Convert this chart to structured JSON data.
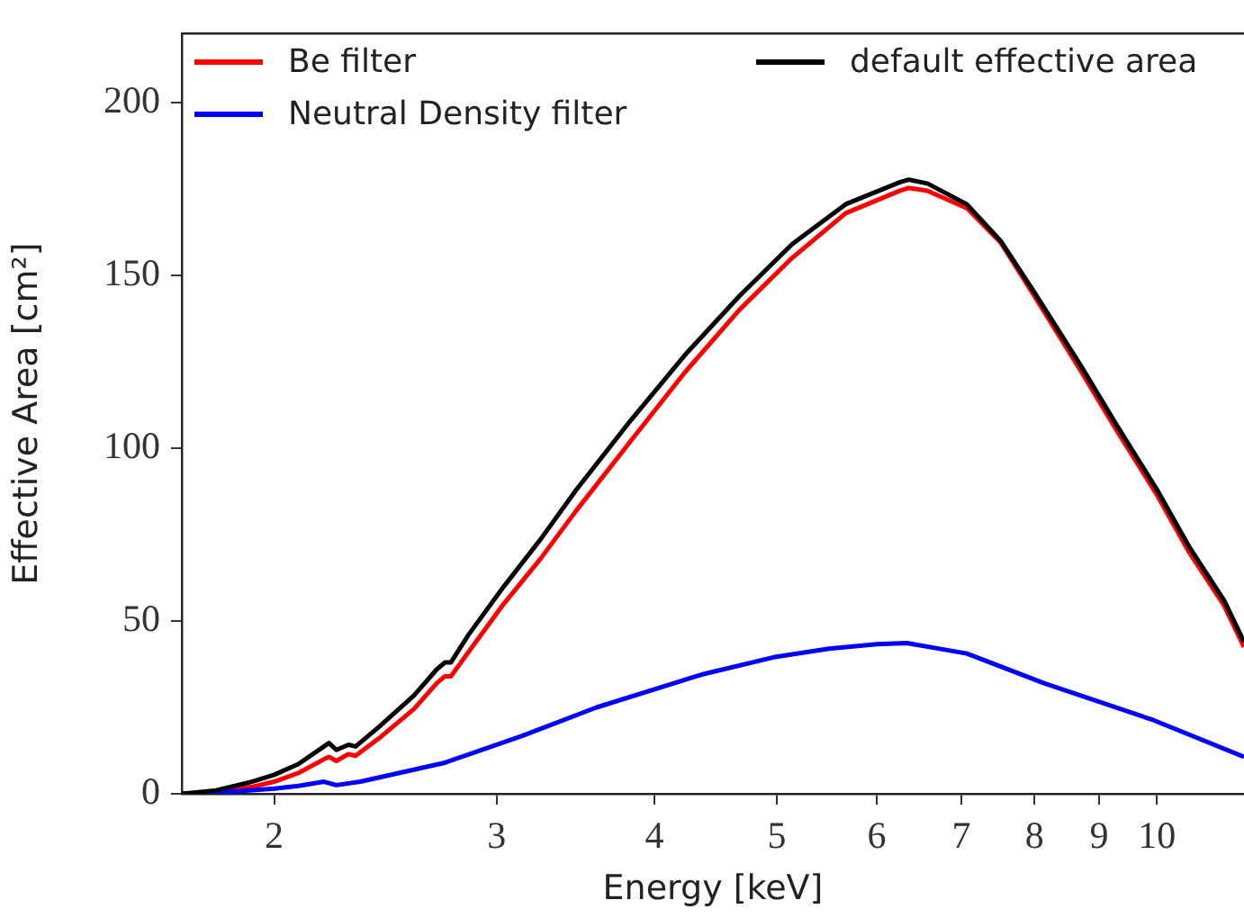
{
  "chart_data": {
    "type": "line",
    "xlabel": "Energy [keV]",
    "ylabel": "Effective Area [cm²]",
    "log": "x",
    "grid": false,
    "legend": "top",
    "marker": "none",
    "line_style": "solid",
    "xlim": [
      1.69,
      11.72
    ],
    "xticks": [
      2,
      3,
      4,
      5,
      6,
      7,
      8,
      9,
      10
    ],
    "ylim": [
      0,
      220
    ],
    "yticks": [
      0,
      50,
      100,
      150,
      200
    ],
    "series": [
      {
        "name": "Be filter",
        "color": "#ff0000",
        "x": [
          1.69,
          1.8,
          1.92,
          2.0,
          2.09,
          2.19,
          2.21,
          2.24,
          2.29,
          2.32,
          2.42,
          2.58,
          2.69,
          2.73,
          2.76,
          2.85,
          3.04,
          3.25,
          3.47,
          3.83,
          4.23,
          4.67,
          5.14,
          5.67,
          6.26,
          6.36,
          6.58,
          7.07,
          7.52,
          8.0,
          8.7,
          9.28,
          10.0,
          10.6,
          11.3,
          11.72
        ],
        "values": [
          0,
          0.5,
          2,
          3.5,
          6,
          10,
          10.7,
          9.5,
          11.5,
          11,
          16,
          24.5,
          32,
          34,
          34,
          41,
          55,
          68,
          82,
          102,
          122,
          140,
          155,
          168,
          174.5,
          175.3,
          174.5,
          169.5,
          159.5,
          144,
          122.5,
          105.5,
          86.5,
          70,
          54.5,
          42.5
        ]
      },
      {
        "name": "Neutral Density filter",
        "color": "#0000ff",
        "x": [
          1.69,
          1.8,
          2.0,
          2.09,
          2.19,
          2.24,
          2.34,
          2.73,
          3.14,
          3.6,
          4.36,
          4.97,
          5.5,
          6.0,
          6.34,
          7.07,
          8.14,
          9.94,
          11.72
        ],
        "values": [
          0,
          0.3,
          1.5,
          2.3,
          3.5,
          2.5,
          3.5,
          9,
          16.7,
          25,
          34.5,
          39.5,
          42,
          43.3,
          43.6,
          40.6,
          32,
          21.3,
          10.7
        ]
      },
      {
        "name": "default effective area",
        "color": "#000000",
        "x": [
          1.69,
          1.8,
          1.92,
          2.0,
          2.09,
          2.19,
          2.21,
          2.24,
          2.29,
          2.32,
          2.42,
          2.58,
          2.69,
          2.73,
          2.76,
          2.85,
          3.04,
          3.25,
          3.47,
          3.83,
          4.23,
          4.67,
          5.14,
          5.67,
          6.26,
          6.36,
          6.58,
          7.07,
          7.52,
          8.0,
          8.7,
          9.28,
          10.0,
          10.6,
          11.3,
          11.72
        ],
        "values": [
          0,
          1,
          3.5,
          5.5,
          8.6,
          13.7,
          14.7,
          12.7,
          14.2,
          13.7,
          19.3,
          28.4,
          36,
          38,
          38,
          46,
          60,
          73.6,
          88,
          108,
          127,
          144,
          159,
          170.6,
          177,
          177.7,
          176.6,
          170.6,
          160,
          145,
          124,
          107,
          88,
          71.6,
          56,
          44
        ]
      }
    ]
  }
}
